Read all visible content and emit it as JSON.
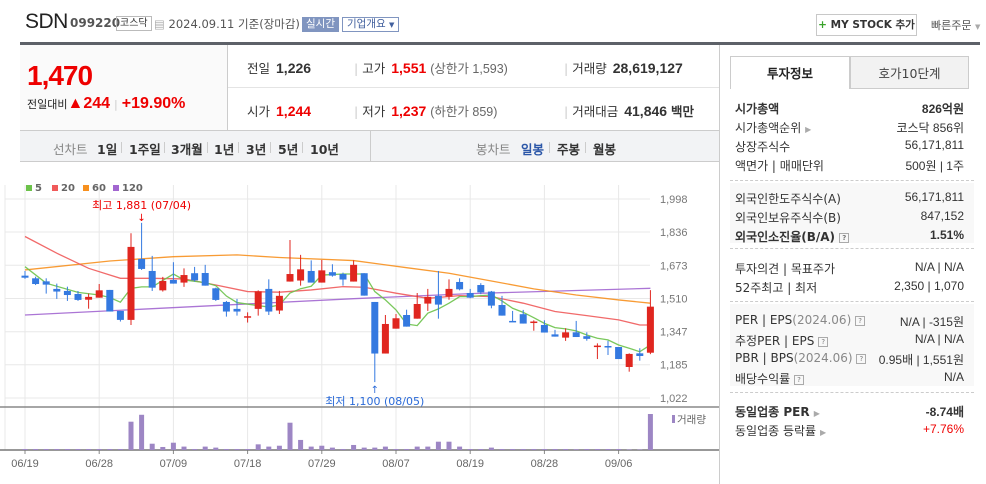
{
  "header": {
    "name": "SDN",
    "code": "099220",
    "market": "코스닥",
    "date": "2024.09.11 기준(장마감)",
    "realtime": "실시간",
    "company_info": "기업개요",
    "mystock": "MY STOCK 추가",
    "quick_order": "빠른주문"
  },
  "quote": {
    "price": "1,470",
    "change_label": "전일대비",
    "change": "244",
    "change_pct": "+19.90%",
    "prev_label": "전일",
    "prev": "1,226",
    "high_label": "고가",
    "high": "1,551",
    "upper_limit": "(상한가 1,593)",
    "volume_label": "거래량",
    "volume": "28,619,127",
    "open_label": "시가",
    "open": "1,244",
    "low_label": "저가",
    "low": "1,237",
    "lower_limit": "(하한가 859)",
    "amount_label": "거래대금",
    "amount": "41,846",
    "amount_unit": "백만"
  },
  "periods": {
    "line_label": "선차트",
    "line": [
      "1일",
      "1주일",
      "3개월",
      "1년",
      "3년",
      "5년",
      "10년"
    ],
    "candle_label": "봉차트",
    "candle": [
      "일봉",
      "주봉",
      "월봉"
    ],
    "active": "일봉"
  },
  "tabs": [
    "투자정보",
    "호가10단계"
  ],
  "info": [
    {
      "k": "시가총액",
      "v": "826억원",
      "bold": true
    },
    {
      "k": "시가총액순위",
      "v": "코스닥 856위"
    },
    {
      "k": "상장주식수",
      "v": "56,171,811"
    },
    {
      "k": "액면가 | 매매단위",
      "v": "500원 | 1주"
    },
    {
      "k": "외국인한도주식수(A)",
      "v": "56,171,811"
    },
    {
      "k": "외국인보유주식수(B)",
      "v": "847,152"
    },
    {
      "k": "외국인소진율(B/A)",
      "v": "1.51%",
      "bold": true
    },
    {
      "k": "투자의견 | 목표주가",
      "v": "N/A | N/A"
    },
    {
      "k": "52주최고 | 최저",
      "v": "2,350 | 1,070"
    },
    {
      "k": "PER | EPS",
      "k2": "(2024.06)",
      "v": "N/A | -315원"
    },
    {
      "k": "추정PER | EPS",
      "v": "N/A | N/A"
    },
    {
      "k": "PBR | BPS",
      "k2": "(2024.06)",
      "v": "0.95배 | 1,551원"
    },
    {
      "k": "배당수익률",
      "v": "N/A"
    },
    {
      "k": "동일업종 PER",
      "v": "-8.74배",
      "bold": true
    },
    {
      "k": "동일업종 등락률",
      "v": "+7.76%"
    }
  ],
  "chart_data": {
    "type": "candlestick",
    "legend": [
      "5",
      "20",
      "60",
      "120"
    ],
    "ma_colors": {
      "5": "#6cc24a",
      "20": "#f05a5a",
      "60": "#f7901e",
      "120": "#a266d0"
    },
    "up_color": "#e0261f",
    "down_color": "#3479e0",
    "volume_color": "#9d86c4",
    "yticks": [
      "1,998",
      "1,836",
      "1,673",
      "1,510",
      "1,347",
      "1,185",
      "1,022"
    ],
    "ylim": [
      1022,
      1998
    ],
    "xticks": [
      {
        "label": "06/19",
        "i": 0
      },
      {
        "label": "06/28",
        "i": 7
      },
      {
        "label": "07/09",
        "i": 14
      },
      {
        "label": "07/18",
        "i": 21
      },
      {
        "label": "07/29",
        "i": 28
      },
      {
        "label": "08/07",
        "i": 35
      },
      {
        "label": "08/19",
        "i": 42
      },
      {
        "label": "08/28",
        "i": 49
      },
      {
        "label": "09/06",
        "i": 56
      }
    ],
    "high_note": {
      "text": "최고 1,881 (07/04)",
      "i": 11,
      "value": 1881
    },
    "low_note": {
      "text": "최저 1,100 (08/05)",
      "i": 33,
      "value": 1100
    },
    "volume_label": "거래량",
    "ohlc": [
      [
        1622,
        1645,
        1606,
        1612
      ],
      [
        1609,
        1617,
        1576,
        1581
      ],
      [
        1594,
        1609,
        1534,
        1578
      ],
      [
        1557,
        1583,
        1508,
        1544
      ],
      [
        1547,
        1568,
        1498,
        1527
      ],
      [
        1532,
        1547,
        1498,
        1503
      ],
      [
        1504,
        1534,
        1460,
        1518
      ],
      [
        1514,
        1581,
        1514,
        1550
      ],
      [
        1552,
        1552,
        1446,
        1446
      ],
      [
        1449,
        1449,
        1397,
        1405
      ],
      [
        1405,
        1830,
        1380,
        1763
      ],
      [
        1704,
        1881,
        1650,
        1655
      ],
      [
        1645,
        1719,
        1547,
        1563
      ],
      [
        1550,
        1616,
        1544,
        1596
      ],
      [
        1601,
        1688,
        1583,
        1583
      ],
      [
        1588,
        1658,
        1567,
        1625
      ],
      [
        1634,
        1665,
        1593,
        1599
      ],
      [
        1635,
        1675,
        1573,
        1573
      ],
      [
        1560,
        1563,
        1498,
        1503
      ],
      [
        1493,
        1498,
        1421,
        1446
      ],
      [
        1459,
        1508,
        1426,
        1446
      ],
      [
        1422,
        1442,
        1392,
        1423
      ],
      [
        1459,
        1550,
        1426,
        1545
      ],
      [
        1557,
        1604,
        1429,
        1446
      ],
      [
        1451,
        1547,
        1434,
        1523
      ],
      [
        1593,
        1797,
        1593,
        1630
      ],
      [
        1598,
        1724,
        1573,
        1653
      ],
      [
        1645,
        1697,
        1588,
        1588
      ],
      [
        1588,
        1699,
        1588,
        1648
      ],
      [
        1639,
        1678,
        1617,
        1622
      ],
      [
        1630,
        1637,
        1573,
        1603
      ],
      [
        1593,
        1697,
        1593,
        1675
      ],
      [
        1634,
        1634,
        1524,
        1524
      ],
      [
        1493,
        1493,
        1100,
        1240
      ],
      [
        1240,
        1429,
        1240,
        1385
      ],
      [
        1362,
        1434,
        1362,
        1413
      ],
      [
        1429,
        1455,
        1372,
        1372
      ],
      [
        1411,
        1537,
        1411,
        1483
      ],
      [
        1485,
        1557,
        1449,
        1518
      ],
      [
        1523,
        1645,
        1411,
        1480
      ],
      [
        1519,
        1604,
        1504,
        1557
      ],
      [
        1591,
        1609,
        1550,
        1555
      ],
      [
        1537,
        1557,
        1511,
        1514
      ],
      [
        1576,
        1585,
        1531,
        1540
      ],
      [
        1544,
        1547,
        1462,
        1475
      ],
      [
        1478,
        1523,
        1426,
        1426
      ],
      [
        1400,
        1449,
        1397,
        1397
      ],
      [
        1433,
        1454,
        1387,
        1387
      ],
      [
        1390,
        1403,
        1352,
        1397
      ],
      [
        1380,
        1403,
        1343,
        1343
      ],
      [
        1334,
        1356,
        1323,
        1323
      ],
      [
        1318,
        1364,
        1302,
        1344
      ],
      [
        1344,
        1400,
        1321,
        1321
      ],
      [
        1325,
        1344,
        1303,
        1312
      ],
      [
        1277,
        1290,
        1213,
        1279
      ],
      [
        1277,
        1303,
        1233,
        1271
      ],
      [
        1272,
        1272,
        1213,
        1213
      ],
      [
        1174,
        1241,
        1151,
        1238
      ],
      [
        1241,
        1266,
        1205,
        1228
      ],
      [
        1244,
        1551,
        1237,
        1470
      ]
    ],
    "volume": [
      800000,
      800000,
      800000,
      800000,
      800000,
      800000,
      800000,
      800000,
      800000,
      800000,
      22500000,
      28000000,
      5000000,
      2400000,
      5800000,
      2700000,
      800000,
      2700000,
      1900000,
      800000,
      800000,
      800000,
      4500000,
      2700000,
      3400000,
      21700000,
      8000000,
      2700000,
      3400000,
      1900000,
      800000,
      4000000,
      1900000,
      1900000,
      2700000,
      800000,
      800000,
      2700000,
      2700000,
      6600000,
      6600000,
      2700000,
      800000,
      800000,
      1900000,
      800000,
      800000,
      800000,
      800000,
      800000,
      800000,
      800000,
      600000,
      800000,
      800000,
      800000,
      800000,
      400000,
      400000,
      28619127
    ],
    "ma": {
      "5": [
        [
          0,
          1666
        ],
        [
          2,
          1585
        ],
        [
          5,
          1540
        ],
        [
          7,
          1527
        ],
        [
          8,
          1515
        ],
        [
          9,
          1492
        ],
        [
          10,
          1560
        ],
        [
          11,
          1567
        ],
        [
          12,
          1567
        ],
        [
          14,
          1630
        ],
        [
          15,
          1601
        ],
        [
          17,
          1588
        ],
        [
          18,
          1573
        ],
        [
          19,
          1522
        ],
        [
          20,
          1490
        ],
        [
          22,
          1475
        ],
        [
          23,
          1468
        ],
        [
          24,
          1478
        ],
        [
          25,
          1537
        ],
        [
          26,
          1558
        ],
        [
          27,
          1570
        ],
        [
          28,
          1625
        ],
        [
          30,
          1630
        ],
        [
          32,
          1630
        ],
        [
          33,
          1544
        ],
        [
          34,
          1503
        ],
        [
          35,
          1454
        ],
        [
          36,
          1385
        ],
        [
          37,
          1377
        ],
        [
          38,
          1438
        ],
        [
          39,
          1459
        ],
        [
          40,
          1487
        ],
        [
          41,
          1519
        ],
        [
          42,
          1519
        ],
        [
          43,
          1524
        ],
        [
          44,
          1527
        ],
        [
          45,
          1498
        ],
        [
          46,
          1462
        ],
        [
          47,
          1442
        ],
        [
          48,
          1416
        ],
        [
          49,
          1388
        ],
        [
          50,
          1367
        ],
        [
          51,
          1361
        ],
        [
          52,
          1351
        ],
        [
          53,
          1331
        ],
        [
          54,
          1315
        ],
        [
          55,
          1307
        ],
        [
          56,
          1282
        ],
        [
          57,
          1266
        ],
        [
          58,
          1249
        ],
        [
          59,
          1282
        ]
      ],
      "20": [
        [
          0,
          1814
        ],
        [
          3,
          1732
        ],
        [
          6,
          1658
        ],
        [
          8,
          1625
        ],
        [
          9,
          1609
        ],
        [
          12,
          1609
        ],
        [
          15,
          1606
        ],
        [
          18,
          1576
        ],
        [
          21,
          1544
        ],
        [
          24,
          1541
        ],
        [
          27,
          1552
        ],
        [
          30,
          1568
        ],
        [
          32,
          1565
        ],
        [
          35,
          1536
        ],
        [
          38,
          1511
        ],
        [
          41,
          1524
        ],
        [
          44,
          1519
        ],
        [
          47,
          1487
        ],
        [
          50,
          1446
        ],
        [
          53,
          1426
        ],
        [
          56,
          1405
        ],
        [
          58,
          1380
        ],
        [
          59,
          1380
        ]
      ],
      "60": [
        [
          0,
          1650
        ],
        [
          8,
          1694
        ],
        [
          14,
          1715
        ],
        [
          20,
          1724
        ],
        [
          24,
          1711
        ],
        [
          31,
          1696
        ],
        [
          36,
          1661
        ],
        [
          40,
          1634
        ],
        [
          44,
          1596
        ],
        [
          48,
          1557
        ],
        [
          52,
          1527
        ],
        [
          56,
          1503
        ],
        [
          59,
          1487
        ]
      ],
      "120": [
        [
          0,
          1429
        ],
        [
          31,
          1509
        ],
        [
          42,
          1534
        ],
        [
          59,
          1560
        ]
      ]
    }
  }
}
